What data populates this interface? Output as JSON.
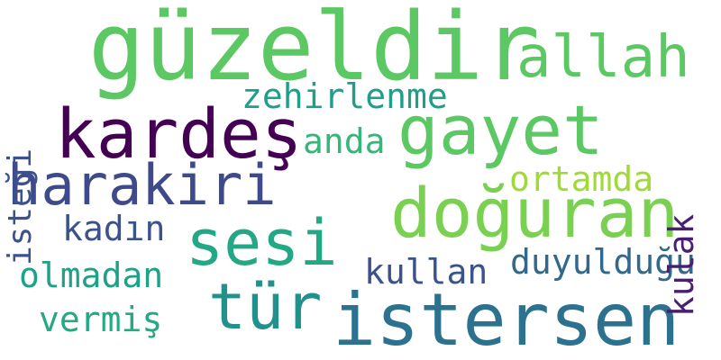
{
  "words": [
    {
      "text": "güzeldir",
      "color": "#5cc863",
      "orientation": "horizontal"
    },
    {
      "text": "allah",
      "color": "#5cc863",
      "orientation": "horizontal"
    },
    {
      "text": "kardeş",
      "color": "#440154",
      "orientation": "horizontal"
    },
    {
      "text": "gayet",
      "color": "#5cc863",
      "orientation": "horizontal"
    },
    {
      "text": "zehirlenme",
      "color": "#1f9e89",
      "orientation": "horizontal"
    },
    {
      "text": "anda",
      "color": "#35b779",
      "orientation": "horizontal"
    },
    {
      "text": "harakiri",
      "color": "#3e4a89",
      "orientation": "horizontal"
    },
    {
      "text": "doğuran",
      "color": "#7ad151",
      "orientation": "horizontal"
    },
    {
      "text": "ortamda",
      "color": "#a0da39",
      "orientation": "horizontal"
    },
    {
      "text": "sesi",
      "color": "#22a884",
      "orientation": "horizontal"
    },
    {
      "text": "kadın",
      "color": "#3b528b",
      "orientation": "horizontal"
    },
    {
      "text": "duyulduğu",
      "color": "#31688e",
      "orientation": "horizontal"
    },
    {
      "text": "kullan",
      "color": "#3b528b",
      "orientation": "horizontal"
    },
    {
      "text": "olmadan",
      "color": "#1fa187",
      "orientation": "horizontal"
    },
    {
      "text": "tür",
      "color": "#21918c",
      "orientation": "horizontal"
    },
    {
      "text": "istersen",
      "color": "#2c728e",
      "orientation": "horizontal"
    },
    {
      "text": "vermiş",
      "color": "#23a983",
      "orientation": "horizontal"
    },
    {
      "text": "isteği",
      "color": "#3b528b",
      "orientation": "vertical"
    },
    {
      "text": "kulak",
      "color": "#481f70",
      "orientation": "vertical"
    }
  ]
}
